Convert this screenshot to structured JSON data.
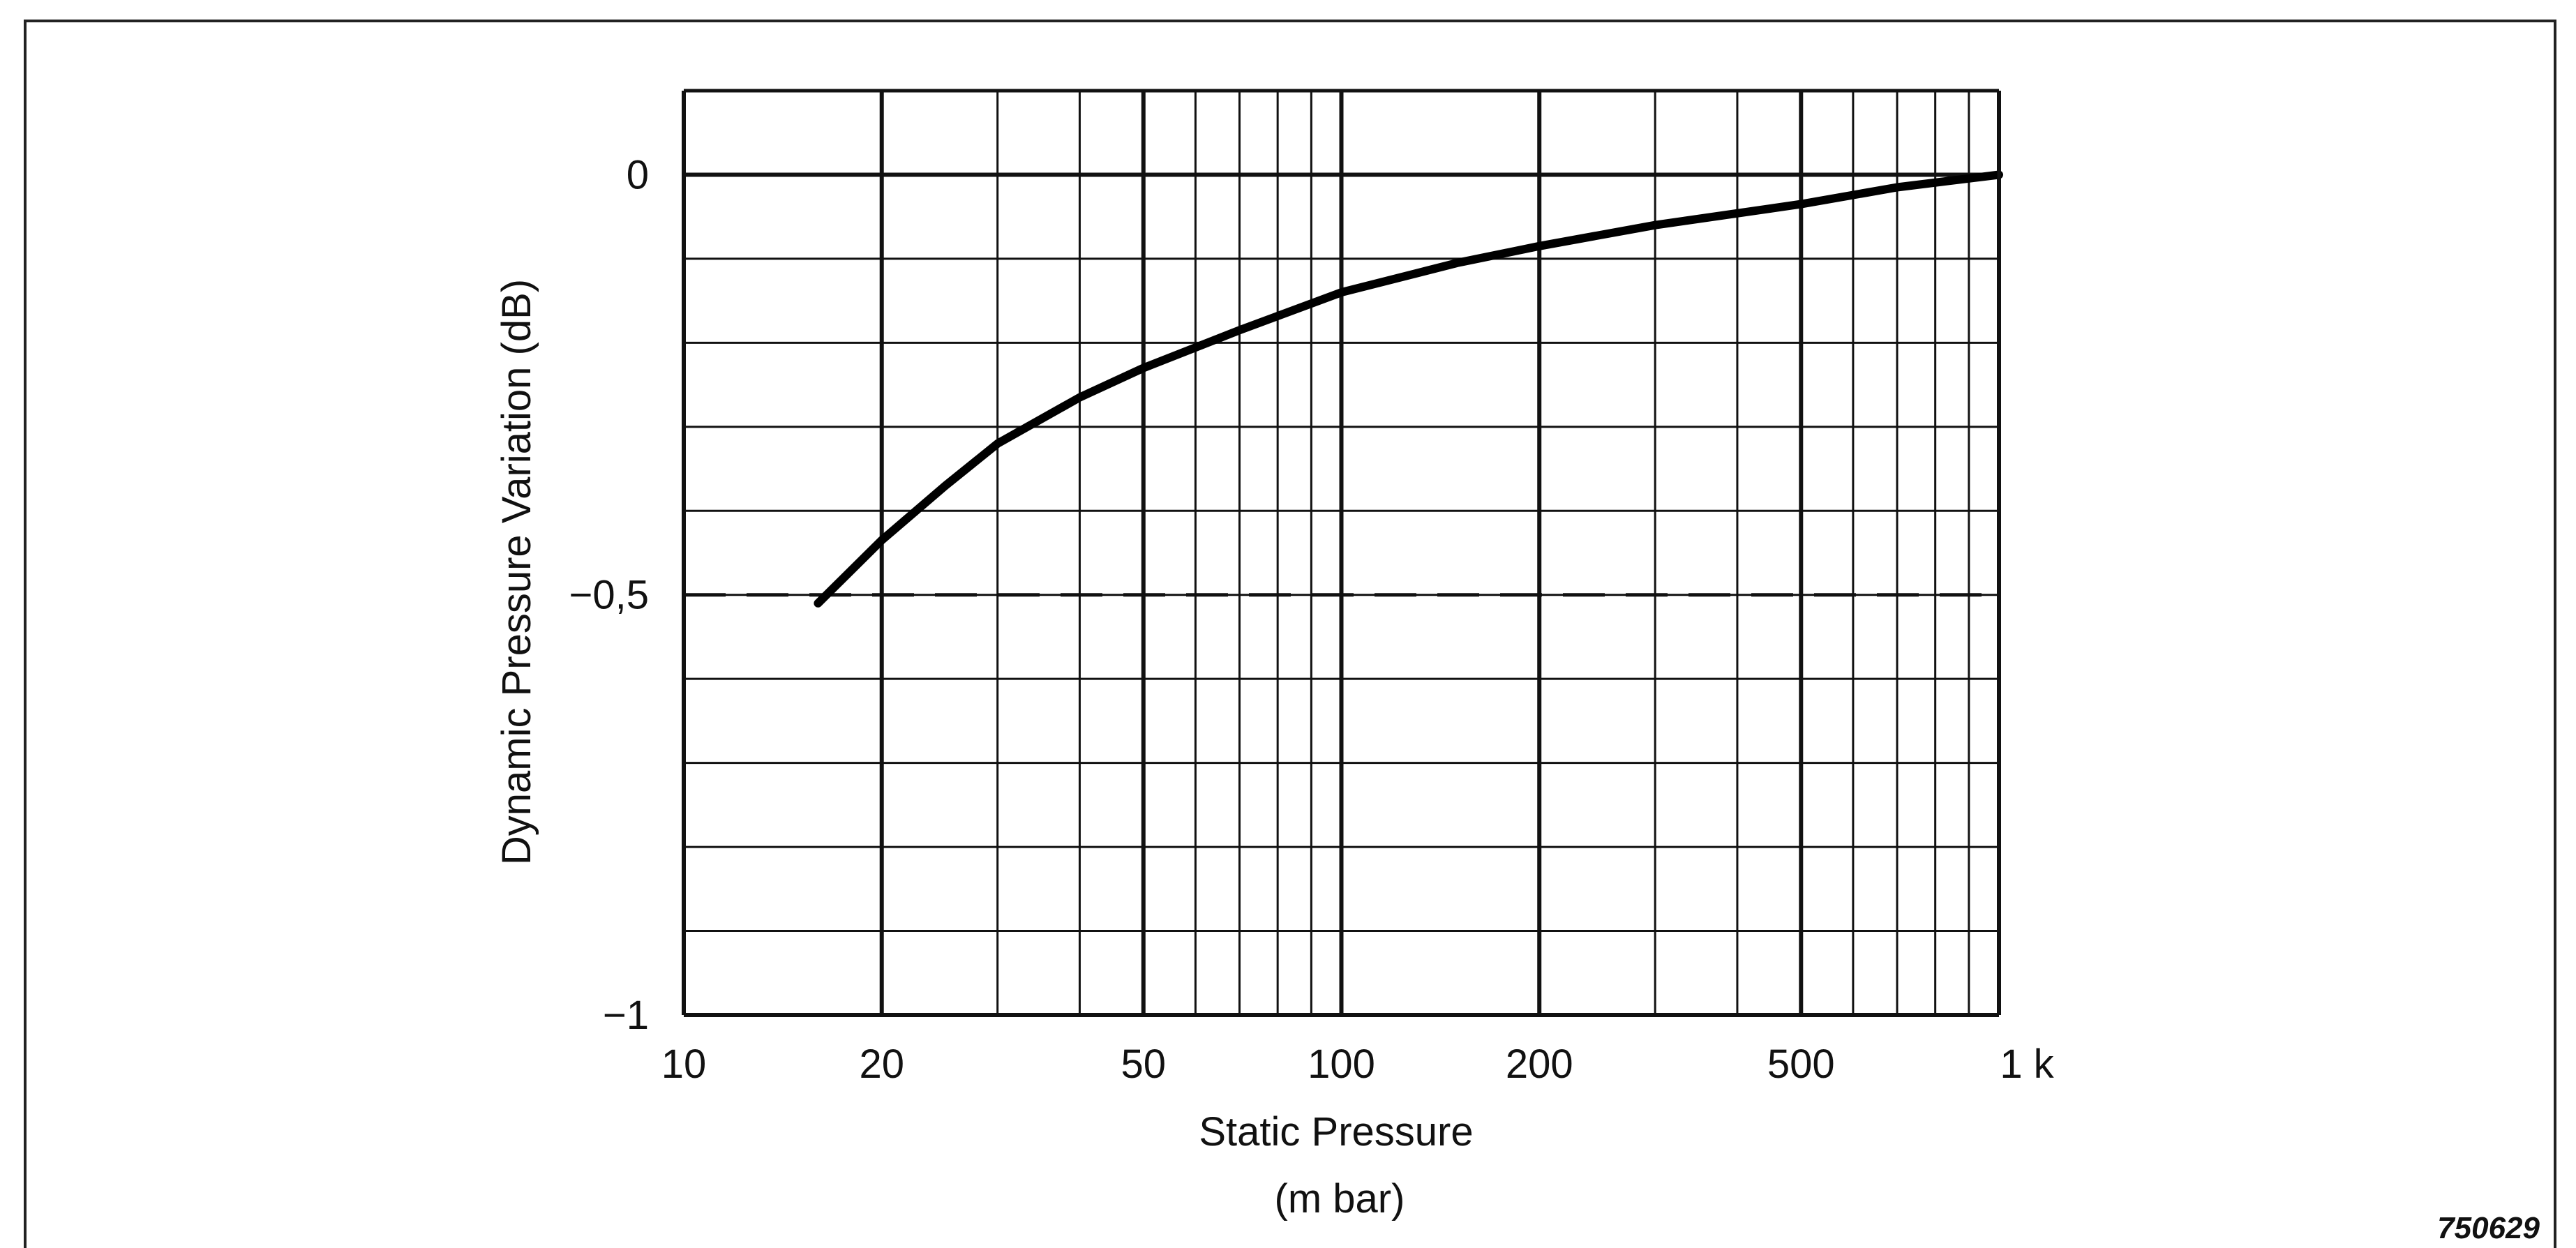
{
  "chart_data": {
    "type": "line",
    "title": "",
    "xlabel": "Static Pressure",
    "xlabel_unit": "(m bar)",
    "ylabel": "Dynamic Pressure Variation (dB)",
    "x_scale": "log",
    "xlim": [
      10,
      1000
    ],
    "ylim": [
      -1,
      0.1
    ],
    "x_tick_values": [
      10,
      20,
      50,
      100,
      200,
      500,
      1000
    ],
    "x_tick_labels": [
      "10",
      "20",
      "50",
      "100",
      "200",
      "500",
      "1 k"
    ],
    "y_tick_values": [
      0,
      -0.5,
      -1
    ],
    "y_tick_labels": [
      "0",
      "−0,5",
      "−1"
    ],
    "grid": true,
    "series": [
      {
        "x": [
          16,
          20,
          25,
          30,
          40,
          50,
          70,
          100,
          150,
          200,
          300,
          500,
          700,
          1000
        ],
        "y": [
          -0.51,
          -0.435,
          -0.37,
          -0.32,
          -0.265,
          -0.23,
          -0.185,
          -0.14,
          -0.105,
          -0.085,
          -0.06,
          -0.035,
          -0.015,
          0
        ]
      }
    ],
    "reference_line": {
      "y": -0.5,
      "style": "dashed"
    },
    "figure_id": "750629"
  }
}
